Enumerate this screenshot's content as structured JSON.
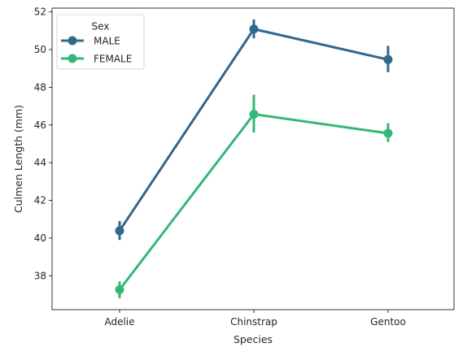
{
  "chart_data": {
    "type": "line",
    "xlabel": "Species",
    "ylabel": "Culmen Length (mm)",
    "categories": [
      "Adelie",
      "Chinstrap",
      "Gentoo"
    ],
    "ylim": [
      36.2,
      52.2
    ],
    "yticks": [
      38,
      40,
      42,
      44,
      46,
      48,
      50,
      52
    ],
    "grid": false,
    "legend": {
      "title": "Sex",
      "placement": "top-left"
    },
    "series": [
      {
        "name": "MALE",
        "color": "#31688e",
        "values": [
          40.39,
          51.09,
          49.47
        ],
        "ci": [
          [
            39.9,
            40.9
          ],
          [
            50.6,
            51.6
          ],
          [
            48.8,
            50.2
          ]
        ]
      },
      {
        "name": "FEMALE",
        "color": "#35b779",
        "values": [
          37.26,
          46.57,
          45.56
        ],
        "ci": [
          [
            36.8,
            37.7
          ],
          [
            45.6,
            47.6
          ],
          [
            45.1,
            46.1
          ]
        ]
      }
    ]
  }
}
